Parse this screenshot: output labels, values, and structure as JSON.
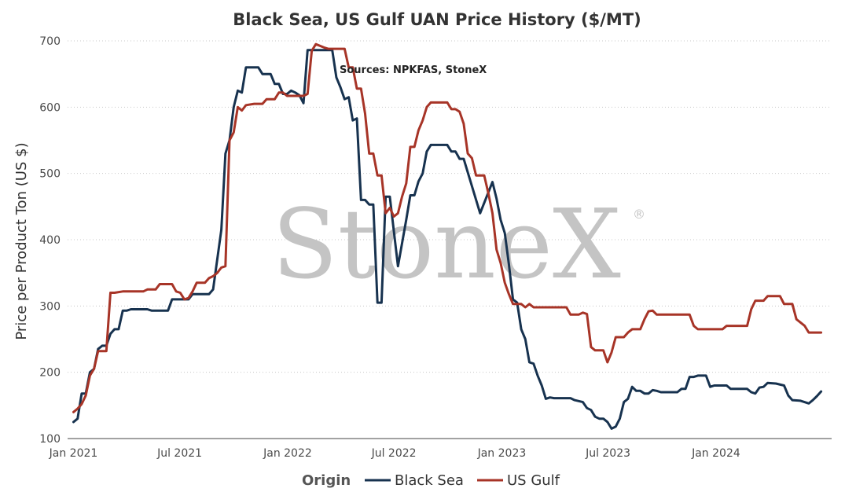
{
  "chart_data": {
    "type": "line",
    "title": "Black Sea, US Gulf UAN Price History ($/MT)",
    "ylabel": "Price per Product Ton (US $)",
    "xlabel": "",
    "ylim": [
      100,
      700
    ],
    "y_ticks": [
      "100",
      "200",
      "300",
      "400",
      "500",
      "600",
      "700"
    ],
    "x_range": [
      "2020-12-22",
      "2024-07-16"
    ],
    "x_ticks": [
      {
        "date": "2021-01-01",
        "label": "Jan 2021"
      },
      {
        "date": "2021-07-01",
        "label": "Jul 2021"
      },
      {
        "date": "2022-01-01",
        "label": "Jan 2022"
      },
      {
        "date": "2022-07-01",
        "label": "Jul 2022"
      },
      {
        "date": "2023-01-01",
        "label": "Jan 2023"
      },
      {
        "date": "2023-07-01",
        "label": "Jul 2023"
      },
      {
        "date": "2024-01-01",
        "label": "Jan 2024"
      }
    ],
    "grid": "horizontal dotted",
    "legend": {
      "title": "Origin",
      "position": "bottom-center"
    },
    "annotation": "Sources: NPKFAS, StoneX",
    "watermark": "StoneX",
    "watermark_mark": "®",
    "series": [
      {
        "name": "Black Sea",
        "color": "#17324f",
        "points": [
          [
            "2021-01-01",
            125
          ],
          [
            "2021-01-08",
            130
          ],
          [
            "2021-01-15",
            168
          ],
          [
            "2021-01-22",
            168
          ],
          [
            "2021-01-29",
            200
          ],
          [
            "2021-02-05",
            205
          ],
          [
            "2021-02-12",
            235
          ],
          [
            "2021-02-19",
            240
          ],
          [
            "2021-02-26",
            240
          ],
          [
            "2021-03-05",
            258
          ],
          [
            "2021-03-12",
            265
          ],
          [
            "2021-03-19",
            265
          ],
          [
            "2021-03-26",
            293
          ],
          [
            "2021-04-02",
            293
          ],
          [
            "2021-04-09",
            295
          ],
          [
            "2021-05-07",
            295
          ],
          [
            "2021-05-14",
            293
          ],
          [
            "2021-06-11",
            293
          ],
          [
            "2021-06-18",
            310
          ],
          [
            "2021-07-16",
            310
          ],
          [
            "2021-07-23",
            318
          ],
          [
            "2021-08-20",
            318
          ],
          [
            "2021-08-27",
            325
          ],
          [
            "2021-09-10",
            415
          ],
          [
            "2021-09-17",
            530
          ],
          [
            "2021-09-24",
            550
          ],
          [
            "2021-10-01",
            600
          ],
          [
            "2021-10-08",
            625
          ],
          [
            "2021-10-15",
            622
          ],
          [
            "2021-10-22",
            660
          ],
          [
            "2021-11-12",
            660
          ],
          [
            "2021-11-19",
            650
          ],
          [
            "2021-12-03",
            650
          ],
          [
            "2021-12-10",
            635
          ],
          [
            "2021-12-17",
            635
          ],
          [
            "2021-12-24",
            620
          ],
          [
            "2021-12-31",
            620
          ],
          [
            "2022-01-07",
            625
          ],
          [
            "2022-01-14",
            622
          ],
          [
            "2022-01-21",
            618
          ],
          [
            "2022-01-28",
            606
          ],
          [
            "2022-02-04",
            686
          ],
          [
            "2022-03-18",
            686
          ],
          [
            "2022-03-25",
            645
          ],
          [
            "2022-04-01",
            630
          ],
          [
            "2022-04-08",
            612
          ],
          [
            "2022-04-15",
            615
          ],
          [
            "2022-04-22",
            580
          ],
          [
            "2022-04-29",
            583
          ],
          [
            "2022-05-06",
            460
          ],
          [
            "2022-05-13",
            460
          ],
          [
            "2022-05-20",
            453
          ],
          [
            "2022-05-27",
            453
          ],
          [
            "2022-06-03",
            305
          ],
          [
            "2022-06-10",
            305
          ],
          [
            "2022-06-17",
            465
          ],
          [
            "2022-06-24",
            465
          ],
          [
            "2022-07-08",
            360
          ],
          [
            "2022-07-22",
            430
          ],
          [
            "2022-07-29",
            467
          ],
          [
            "2022-08-05",
            467
          ],
          [
            "2022-08-12",
            488
          ],
          [
            "2022-08-19",
            500
          ],
          [
            "2022-08-26",
            533
          ],
          [
            "2022-09-02",
            543
          ],
          [
            "2022-09-30",
            543
          ],
          [
            "2022-10-07",
            533
          ],
          [
            "2022-10-14",
            533
          ],
          [
            "2022-10-21",
            522
          ],
          [
            "2022-10-28",
            522
          ],
          [
            "2022-11-25",
            440
          ],
          [
            "2022-12-16",
            487
          ],
          [
            "2022-12-23",
            462
          ],
          [
            "2022-12-30",
            430
          ],
          [
            "2023-01-06",
            410
          ],
          [
            "2023-01-13",
            363
          ],
          [
            "2023-01-20",
            310
          ],
          [
            "2023-01-27",
            305
          ],
          [
            "2023-02-03",
            265
          ],
          [
            "2023-02-10",
            250
          ],
          [
            "2023-02-17",
            215
          ],
          [
            "2023-02-24",
            213
          ],
          [
            "2023-03-03",
            195
          ],
          [
            "2023-03-10",
            180
          ],
          [
            "2023-03-17",
            160
          ],
          [
            "2023-03-24",
            162
          ],
          [
            "2023-03-31",
            161
          ],
          [
            "2023-04-28",
            161
          ],
          [
            "2023-05-05",
            158
          ],
          [
            "2023-05-19",
            155
          ],
          [
            "2023-05-26",
            146
          ],
          [
            "2023-06-02",
            143
          ],
          [
            "2023-06-09",
            133
          ],
          [
            "2023-06-16",
            130
          ],
          [
            "2023-06-23",
            130
          ],
          [
            "2023-06-30",
            125
          ],
          [
            "2023-07-07",
            115
          ],
          [
            "2023-07-14",
            118
          ],
          [
            "2023-07-21",
            130
          ],
          [
            "2023-07-28",
            155
          ],
          [
            "2023-08-04",
            160
          ],
          [
            "2023-08-11",
            178
          ],
          [
            "2023-08-18",
            172
          ],
          [
            "2023-08-25",
            172
          ],
          [
            "2023-09-01",
            168
          ],
          [
            "2023-09-08",
            168
          ],
          [
            "2023-09-15",
            173
          ],
          [
            "2023-09-22",
            172
          ],
          [
            "2023-09-29",
            170
          ],
          [
            "2023-10-27",
            170
          ],
          [
            "2023-11-03",
            175
          ],
          [
            "2023-11-10",
            175
          ],
          [
            "2023-11-17",
            193
          ],
          [
            "2023-11-24",
            193
          ],
          [
            "2023-12-01",
            195
          ],
          [
            "2023-12-15",
            195
          ],
          [
            "2023-12-22",
            178
          ],
          [
            "2023-12-29",
            180
          ],
          [
            "2024-01-19",
            180
          ],
          [
            "2024-01-26",
            175
          ],
          [
            "2024-02-23",
            175
          ],
          [
            "2024-03-01",
            170
          ],
          [
            "2024-03-08",
            168
          ],
          [
            "2024-03-15",
            177
          ],
          [
            "2024-03-22",
            178
          ],
          [
            "2024-03-29",
            184
          ],
          [
            "2024-04-12",
            183
          ],
          [
            "2024-04-26",
            180
          ],
          [
            "2024-05-03",
            165
          ],
          [
            "2024-05-10",
            158
          ],
          [
            "2024-05-24",
            157
          ],
          [
            "2024-06-07",
            153
          ],
          [
            "2024-06-14",
            158
          ],
          [
            "2024-06-21",
            164
          ],
          [
            "2024-06-28",
            171
          ]
        ]
      },
      {
        "name": "US Gulf",
        "color": "#a73427",
        "points": [
          [
            "2021-01-01",
            140
          ],
          [
            "2021-01-08",
            145
          ],
          [
            "2021-01-15",
            152
          ],
          [
            "2021-01-22",
            165
          ],
          [
            "2021-01-29",
            195
          ],
          [
            "2021-02-05",
            205
          ],
          [
            "2021-02-12",
            232
          ],
          [
            "2021-02-26",
            232
          ],
          [
            "2021-03-05",
            320
          ],
          [
            "2021-03-12",
            320
          ],
          [
            "2021-03-26",
            322
          ],
          [
            "2021-04-30",
            322
          ],
          [
            "2021-05-07",
            325
          ],
          [
            "2021-05-21",
            325
          ],
          [
            "2021-05-28",
            333
          ],
          [
            "2021-06-18",
            333
          ],
          [
            "2021-06-25",
            322
          ],
          [
            "2021-07-02",
            320
          ],
          [
            "2021-07-09",
            310
          ],
          [
            "2021-07-16",
            312
          ],
          [
            "2021-07-23",
            322
          ],
          [
            "2021-07-30",
            335
          ],
          [
            "2021-08-13",
            335
          ],
          [
            "2021-08-20",
            342
          ],
          [
            "2021-08-27",
            345
          ],
          [
            "2021-09-03",
            350
          ],
          [
            "2021-09-10",
            358
          ],
          [
            "2021-09-17",
            360
          ],
          [
            "2021-09-24",
            550
          ],
          [
            "2021-10-01",
            562
          ],
          [
            "2021-10-08",
            600
          ],
          [
            "2021-10-15",
            595
          ],
          [
            "2021-10-22",
            603
          ],
          [
            "2021-11-05",
            605
          ],
          [
            "2021-11-19",
            605
          ],
          [
            "2021-11-26",
            612
          ],
          [
            "2021-12-10",
            612
          ],
          [
            "2021-12-17",
            622
          ],
          [
            "2021-12-24",
            622
          ],
          [
            "2021-12-31",
            617
          ],
          [
            "2022-01-07",
            617
          ],
          [
            "2022-01-28",
            617
          ],
          [
            "2022-02-04",
            620
          ],
          [
            "2022-02-11",
            685
          ],
          [
            "2022-02-18",
            695
          ],
          [
            "2022-03-04",
            690
          ],
          [
            "2022-03-11",
            688
          ],
          [
            "2022-04-08",
            688
          ],
          [
            "2022-04-15",
            660
          ],
          [
            "2022-04-22",
            660
          ],
          [
            "2022-04-29",
            628
          ],
          [
            "2022-05-06",
            628
          ],
          [
            "2022-05-13",
            590
          ],
          [
            "2022-05-20",
            530
          ],
          [
            "2022-05-27",
            530
          ],
          [
            "2022-06-03",
            497
          ],
          [
            "2022-06-10",
            497
          ],
          [
            "2022-06-17",
            440
          ],
          [
            "2022-06-24",
            448
          ],
          [
            "2022-07-01",
            435
          ],
          [
            "2022-07-08",
            440
          ],
          [
            "2022-07-15",
            465
          ],
          [
            "2022-07-22",
            485
          ],
          [
            "2022-07-29",
            540
          ],
          [
            "2022-08-05",
            540
          ],
          [
            "2022-08-12",
            565
          ],
          [
            "2022-08-19",
            580
          ],
          [
            "2022-08-26",
            600
          ],
          [
            "2022-09-02",
            607
          ],
          [
            "2022-09-30",
            607
          ],
          [
            "2022-10-07",
            597
          ],
          [
            "2022-10-14",
            597
          ],
          [
            "2022-10-21",
            593
          ],
          [
            "2022-10-28",
            575
          ],
          [
            "2022-11-04",
            530
          ],
          [
            "2022-11-11",
            523
          ],
          [
            "2022-11-18",
            497
          ],
          [
            "2022-12-02",
            497
          ],
          [
            "2022-12-09",
            470
          ],
          [
            "2022-12-16",
            440
          ],
          [
            "2022-12-23",
            385
          ],
          [
            "2022-12-30",
            365
          ],
          [
            "2023-01-06",
            335
          ],
          [
            "2023-01-13",
            318
          ],
          [
            "2023-01-20",
            303
          ],
          [
            "2023-02-03",
            303
          ],
          [
            "2023-02-10",
            298
          ],
          [
            "2023-02-17",
            303
          ],
          [
            "2023-02-24",
            298
          ],
          [
            "2023-04-21",
            298
          ],
          [
            "2023-04-28",
            287
          ],
          [
            "2023-05-12",
            287
          ],
          [
            "2023-05-19",
            290
          ],
          [
            "2023-05-26",
            288
          ],
          [
            "2023-06-02",
            238
          ],
          [
            "2023-06-09",
            233
          ],
          [
            "2023-06-23",
            233
          ],
          [
            "2023-06-30",
            215
          ],
          [
            "2023-07-07",
            230
          ],
          [
            "2023-07-14",
            253
          ],
          [
            "2023-07-28",
            253
          ],
          [
            "2023-08-04",
            260
          ],
          [
            "2023-08-11",
            265
          ],
          [
            "2023-08-25",
            265
          ],
          [
            "2023-09-01",
            280
          ],
          [
            "2023-09-08",
            292
          ],
          [
            "2023-09-15",
            293
          ],
          [
            "2023-09-22",
            287
          ],
          [
            "2023-11-17",
            287
          ],
          [
            "2023-11-24",
            270
          ],
          [
            "2023-12-01",
            265
          ],
          [
            "2024-01-12",
            265
          ],
          [
            "2024-01-19",
            270
          ],
          [
            "2024-02-23",
            270
          ],
          [
            "2024-03-01",
            295
          ],
          [
            "2024-03-08",
            308
          ],
          [
            "2024-03-22",
            308
          ],
          [
            "2024-03-29",
            315
          ],
          [
            "2024-04-19",
            315
          ],
          [
            "2024-04-26",
            303
          ],
          [
            "2024-05-10",
            303
          ],
          [
            "2024-05-17",
            280
          ],
          [
            "2024-05-31",
            270
          ],
          [
            "2024-06-07",
            260
          ],
          [
            "2024-06-28",
            260
          ]
        ]
      }
    ]
  }
}
